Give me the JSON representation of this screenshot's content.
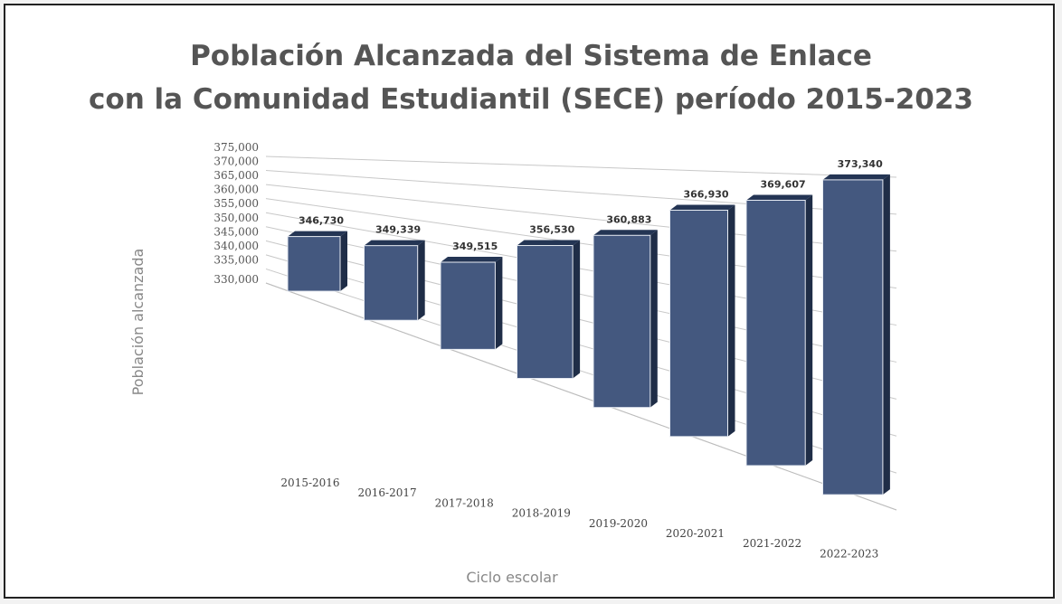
{
  "chart_data": {
    "type": "bar",
    "title": "Población Alcanzada del Sistema de Enlace",
    "subtitle": "con la Comunidad Estudiantil  (SECE) período 2015-2023",
    "xlabel": "Ciclo escolar",
    "ylabel": "Población alcanzada",
    "categories": [
      "2015-2016",
      "2016-2017",
      "2017-2018",
      "2018-2019",
      "2019-2020",
      "2020-2021",
      "2021-2022",
      "2022-2023"
    ],
    "values": [
      346730,
      349339,
      349515,
      356530,
      360883,
      366930,
      369607,
      373340
    ],
    "data_labels": [
      "346,730",
      "349,339",
      "349,515",
      "356,530",
      "360,883",
      "366,930",
      "369,607",
      "373,340"
    ],
    "y_ticks": [
      "330,000",
      "335,000",
      "340,000",
      "345,000",
      "350,000",
      "355,000",
      "360,000",
      "365,000",
      "370,000",
      "375,000"
    ],
    "ylim": [
      330000,
      375000
    ],
    "grid": true,
    "bar_color": "#44587f",
    "style": "3d-perspective"
  }
}
